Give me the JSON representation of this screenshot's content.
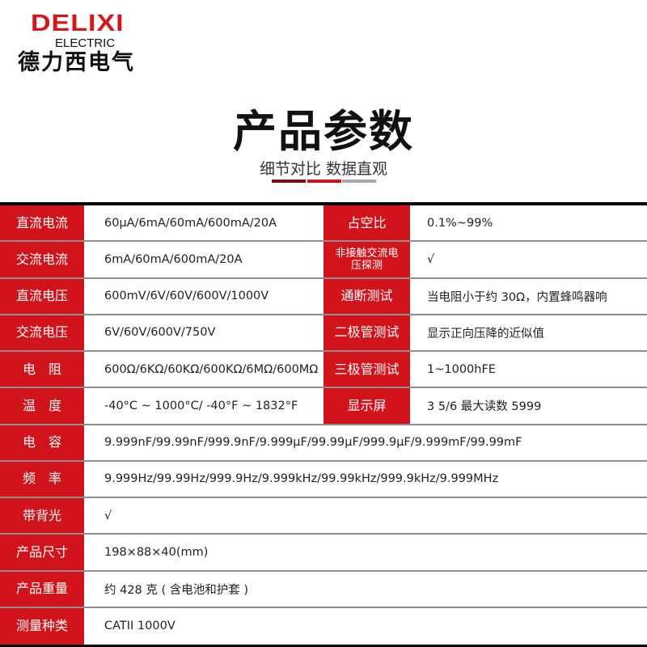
{
  "logo": {
    "brand": "DELIXI",
    "sub": "ELECTRIC",
    "cn": "德力西电气"
  },
  "header": {
    "title": "产品参数",
    "subtitle": "细节对比 数据直观"
  },
  "colors": {
    "accent": "#d1141c",
    "dark_red": "#7a0e1f",
    "gray": "#a8a8a8"
  },
  "specs_pairs": [
    {
      "label1": "直流电流",
      "value1": "60μA/6mA/60mA/600mA/20A",
      "label2": "占空比",
      "value2": "0.1%~99%"
    },
    {
      "label1": "交流电流",
      "value1": "6mA/60mA/600mA/20A",
      "label2": "非接触交流电压探测",
      "value2": "√"
    },
    {
      "label1": "直流电压",
      "value1": "600mV/6V/60V/600V/1000V",
      "label2": "通断测试",
      "value2": "当电阻小于约 30Ω，内置蜂鸣器响"
    },
    {
      "label1": "交流电压",
      "value1": "6V/60V/600V/750V",
      "label2": "二极管测试",
      "value2": "显示正向压降的近似值"
    },
    {
      "label1": "电　阻",
      "value1": "600Ω/6KΩ/60KΩ/600KΩ/6MΩ/600MΩ",
      "label2": "三极管测试",
      "value2": "1~1000hFE"
    },
    {
      "label1": "温　度",
      "value1": "-40°C ~ 1000°C/ -40°F ~ 1832°F",
      "label2": "显示屏",
      "value2": "3 5/6  最大读数 5999"
    }
  ],
  "specs_wide": [
    {
      "label": "电　容",
      "value": "9.999nF/99.99nF/999.9nF/9.999μF/99.99μF/999.9μF/9.999mF/99.99mF"
    },
    {
      "label": "频　率",
      "value": "9.999Hz/99.99Hz/999.9Hz/9.999kHz/99.99kHz/999.9kHz/9.999MHz"
    },
    {
      "label": "带背光",
      "value": "√"
    },
    {
      "label": "产品尺寸",
      "value": "198×88×40(mm)"
    },
    {
      "label": "产品重量",
      "value": "约 428 克 ( 含电池和护套 )"
    },
    {
      "label": "测量种类",
      "value": "CATII 1000V"
    }
  ]
}
